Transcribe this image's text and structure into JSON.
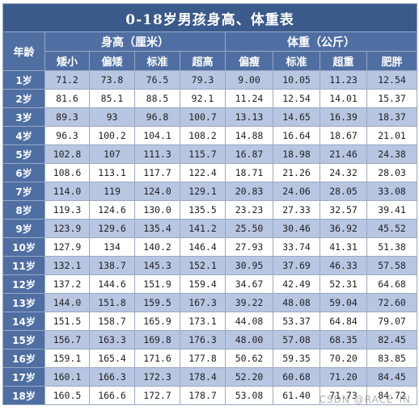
{
  "title": "0-18岁男孩身高、体重表",
  "headers": {
    "age": "年龄",
    "height_group": "身高（厘米）",
    "weight_group": "体重（公斤）",
    "height_cols": [
      "矮小",
      "偏矮",
      "标准",
      "超高"
    ],
    "weight_cols": [
      "偏瘦",
      "标准",
      "超重",
      "肥胖"
    ]
  },
  "rows": [
    {
      "age": "1岁",
      "h": [
        "71.2",
        "73.8",
        "76.5",
        "79.3"
      ],
      "w": [
        "9.00",
        "10.05",
        "11.23",
        "12.54"
      ]
    },
    {
      "age": "2岁",
      "h": [
        "81.6",
        "85.1",
        "88.5",
        "92.1"
      ],
      "w": [
        "11.24",
        "12.54",
        "14.01",
        "15.37"
      ]
    },
    {
      "age": "3岁",
      "h": [
        "89.3",
        "93",
        "96.8",
        "100.7"
      ],
      "w": [
        "13.13",
        "14.65",
        "16.39",
        "18.37"
      ]
    },
    {
      "age": "4岁",
      "h": [
        "96.3",
        "100.2",
        "104.1",
        "108.2"
      ],
      "w": [
        "14.88",
        "16.64",
        "18.67",
        "21.01"
      ]
    },
    {
      "age": "5岁",
      "h": [
        "102.8",
        "107",
        "111.3",
        "115.7"
      ],
      "w": [
        "16.87",
        "18.98",
        "21.46",
        "24.38"
      ]
    },
    {
      "age": "6岁",
      "h": [
        "108.6",
        "113.1",
        "117.7",
        "122.4"
      ],
      "w": [
        "18.71",
        "21.26",
        "24.32",
        "28.03"
      ]
    },
    {
      "age": "7岁",
      "h": [
        "114.0",
        "119",
        "124.0",
        "129.1"
      ],
      "w": [
        "20.83",
        "24.06",
        "28.05",
        "33.08"
      ]
    },
    {
      "age": "8岁",
      "h": [
        "119.3",
        "124.6",
        "130.0",
        "135.5"
      ],
      "w": [
        "23.23",
        "27.33",
        "32.57",
        "39.41"
      ]
    },
    {
      "age": "9岁",
      "h": [
        "123.9",
        "129.6",
        "135.4",
        "141.2"
      ],
      "w": [
        "25.50",
        "30.46",
        "36.92",
        "45.52"
      ]
    },
    {
      "age": "10岁",
      "h": [
        "127.9",
        "134",
        "140.2",
        "146.4"
      ],
      "w": [
        "27.93",
        "33.74",
        "41.31",
        "51.38"
      ]
    },
    {
      "age": "11岁",
      "h": [
        "132.1",
        "138.7",
        "145.3",
        "152.1"
      ],
      "w": [
        "30.95",
        "37.69",
        "46.33",
        "57.58"
      ]
    },
    {
      "age": "12岁",
      "h": [
        "137.2",
        "144.6",
        "151.9",
        "159.4"
      ],
      "w": [
        "34.67",
        "42.49",
        "52.31",
        "64.68"
      ]
    },
    {
      "age": "13岁",
      "h": [
        "144.0",
        "151.8",
        "159.5",
        "167.3"
      ],
      "w": [
        "39.22",
        "48.08",
        "59.04",
        "72.60"
      ]
    },
    {
      "age": "14岁",
      "h": [
        "151.5",
        "158.7",
        "165.9",
        "173.1"
      ],
      "w": [
        "44.08",
        "53.37",
        "64.84",
        "79.07"
      ]
    },
    {
      "age": "15岁",
      "h": [
        "156.7",
        "163.3",
        "169.8",
        "176.3"
      ],
      "w": [
        "48.00",
        "57.08",
        "68.35",
        "82.45"
      ]
    },
    {
      "age": "16岁",
      "h": [
        "159.1",
        "165.4",
        "171.6",
        "177.8"
      ],
      "w": [
        "50.62",
        "59.35",
        "70.20",
        "83.85"
      ]
    },
    {
      "age": "17岁",
      "h": [
        "160.1",
        "166.3",
        "172.3",
        "178.4"
      ],
      "w": [
        "52.20",
        "60.68",
        "71.20",
        "84.45"
      ]
    },
    {
      "age": "18岁",
      "h": [
        "160.5",
        "166.6",
        "172.7",
        "178.7"
      ],
      "w": [
        "53.08",
        "61.40",
        "71.73",
        "84.72"
      ]
    }
  ],
  "watermark": "CSDN @RACE_IN",
  "colors": {
    "title_bg": "#3a5a8c",
    "header_bg": "#4f6fa3",
    "odd_row_bg": "#b8c6e2",
    "even_row_bg": "#ffffff",
    "border": "#9aa8c4"
  }
}
